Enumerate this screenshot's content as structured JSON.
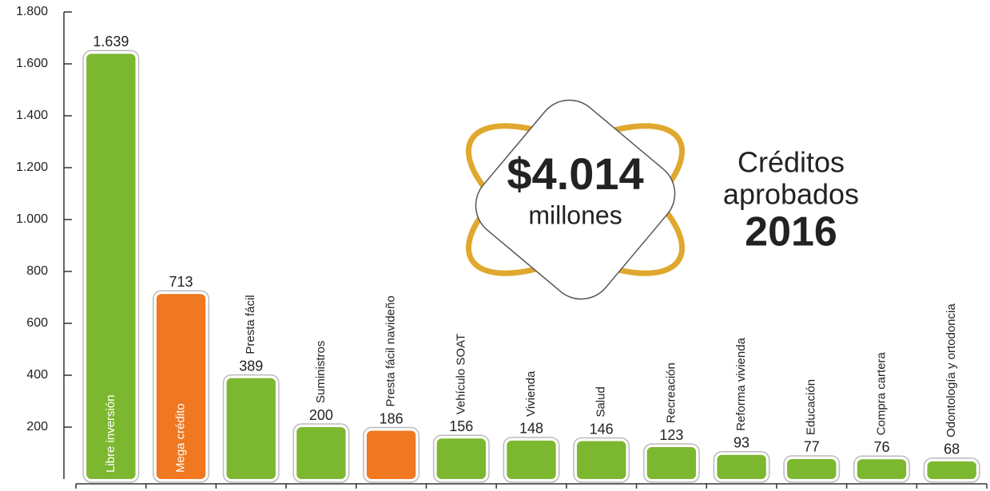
{
  "chart_data": {
    "type": "bar",
    "categories": [
      "Libre inversión",
      "Mega crédito",
      "Presta fácil",
      "Suministros",
      "Presta fácil navideño",
      "Vehículo SOAT",
      "Vivienda",
      "Salud",
      "Recreación",
      "Reforma vivienda",
      "Educación",
      "Compra cartera",
      "Odontología y ortodoncia"
    ],
    "values": [
      1639,
      713,
      389,
      200,
      186,
      156,
      148,
      146,
      123,
      93,
      77,
      76,
      68
    ],
    "value_labels": [
      "1.639",
      "713",
      "389",
      "200",
      "186",
      "156",
      "148",
      "146",
      "123",
      "93",
      "77",
      "76",
      "68"
    ],
    "colors": [
      "#7cb82f",
      "#f07820",
      "#7cb82f",
      "#7cb82f",
      "#f07820",
      "#7cb82f",
      "#7cb82f",
      "#7cb82f",
      "#7cb82f",
      "#7cb82f",
      "#7cb82f",
      "#7cb82f",
      "#7cb82f"
    ],
    "ylim": [
      0,
      1800
    ],
    "yticks": [
      {
        "value": 200,
        "label": "200"
      },
      {
        "value": 400,
        "label": "400"
      },
      {
        "value": 600,
        "label": "600"
      },
      {
        "value": 800,
        "label": "800"
      },
      {
        "value": 1000,
        "label": "1.000"
      },
      {
        "value": 1200,
        "label": "1.200"
      },
      {
        "value": 1400,
        "label": "1.400"
      },
      {
        "value": 1600,
        "label": "1.600"
      },
      {
        "value": 1800,
        "label": "1.800"
      }
    ],
    "annotations": {
      "amount": "$4.014",
      "unit": "millones",
      "line1": "Créditos",
      "line2": "aprobados",
      "year": "2016"
    }
  }
}
